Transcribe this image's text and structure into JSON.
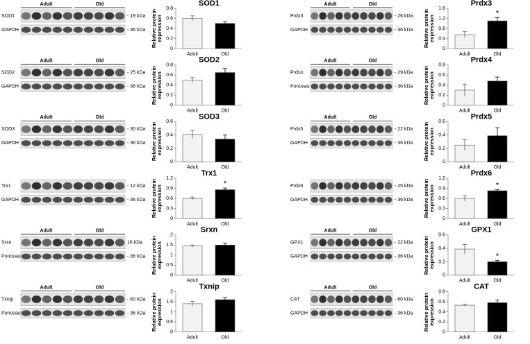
{
  "chart_data": [
    {
      "type": "bar",
      "title": "SOD1",
      "ylabel": "Relative protein expression",
      "categories": [
        "Adult",
        "Old"
      ],
      "values": [
        0.6,
        0.5
      ],
      "errors": [
        0.05,
        0.03
      ],
      "colors": [
        "#f2f2f2",
        "#000000"
      ],
      "significance": [
        null,
        null
      ],
      "ylim": [
        0,
        0.8
      ],
      "yticks": [
        0,
        0.2,
        0.4,
        0.6,
        0.8
      ]
    },
    {
      "type": "bar",
      "title": "SOD2",
      "ylabel": "Relative protein expression",
      "categories": [
        "Adult",
        "Old"
      ],
      "values": [
        0.5,
        0.65
      ],
      "errors": [
        0.05,
        0.08
      ],
      "colors": [
        "#f2f2f2",
        "#000000"
      ],
      "significance": [
        null,
        null
      ],
      "ylim": [
        0,
        0.8
      ],
      "yticks": [
        0,
        0.2,
        0.4,
        0.6,
        0.8
      ]
    },
    {
      "type": "bar",
      "title": "SOD3",
      "ylabel": "Relative protein expression",
      "categories": [
        "Adult",
        "Old"
      ],
      "values": [
        0.41,
        0.34
      ],
      "errors": [
        0.06,
        0.06
      ],
      "colors": [
        "#f2f2f2",
        "#000000"
      ],
      "significance": [
        null,
        null
      ],
      "ylim": [
        0,
        0.6
      ],
      "yticks": [
        0,
        0.2,
        0.4,
        0.6
      ]
    },
    {
      "type": "bar",
      "title": "Trx1",
      "ylabel": "Relative protein expression",
      "categories": [
        "Adult",
        "Old"
      ],
      "values": [
        0.6,
        0.86
      ],
      "errors": [
        0.04,
        0.05
      ],
      "colors": [
        "#f2f2f2",
        "#000000"
      ],
      "significance": [
        null,
        "*"
      ],
      "ylim": [
        0,
        1.2
      ],
      "yticks": [
        0,
        0.3,
        0.6,
        0.9,
        1.2
      ]
    },
    {
      "type": "bar",
      "title": "Srxn",
      "ylabel": "Relative protein expression",
      "categories": [
        "Adult",
        "Old"
      ],
      "values": [
        1.45,
        1.5
      ],
      "errors": [
        0.05,
        0.1
      ],
      "colors": [
        "#f2f2f2",
        "#000000"
      ],
      "significance": [
        null,
        null
      ],
      "ylim": [
        0,
        2
      ],
      "yticks": [
        0,
        0.5,
        1,
        1.5,
        2
      ]
    },
    {
      "type": "bar",
      "title": "Txnip",
      "ylabel": "Relative protein expression",
      "categories": [
        "Adult",
        "Old"
      ],
      "values": [
        1.4,
        1.6
      ],
      "errors": [
        0.12,
        0.1
      ],
      "colors": [
        "#f2f2f2",
        "#000000"
      ],
      "significance": [
        null,
        null
      ],
      "ylim": [
        0,
        2
      ],
      "yticks": [
        0,
        0.5,
        1,
        1.5,
        2
      ]
    },
    {
      "type": "bar",
      "title": "Prdx3",
      "ylabel": "Relative protein expression",
      "categories": [
        "Adult",
        "Old"
      ],
      "values": [
        0.55,
        1.1
      ],
      "errors": [
        0.12,
        0.13
      ],
      "colors": [
        "#f2f2f2",
        "#000000"
      ],
      "significance": [
        null,
        "*"
      ],
      "ylim": [
        0,
        1.6
      ],
      "yticks": [
        0,
        0.4,
        0.8,
        1.2,
        1.6
      ]
    },
    {
      "type": "bar",
      "title": "Prdx4",
      "ylabel": "Relative protein expression",
      "categories": [
        "Adult",
        "Old"
      ],
      "values": [
        0.3,
        0.48
      ],
      "errors": [
        0.12,
        0.08
      ],
      "colors": [
        "#f2f2f2",
        "#000000"
      ],
      "significance": [
        null,
        null
      ],
      "ylim": [
        0,
        0.8
      ],
      "yticks": [
        0,
        0.2,
        0.4,
        0.6,
        0.8
      ]
    },
    {
      "type": "bar",
      "title": "Prdx5",
      "ylabel": "Relative protein expression",
      "categories": [
        "Adult",
        "Old"
      ],
      "values": [
        0.25,
        0.39
      ],
      "errors": [
        0.08,
        0.12
      ],
      "colors": [
        "#f2f2f2",
        "#000000"
      ],
      "significance": [
        null,
        null
      ],
      "ylim": [
        0,
        0.6
      ],
      "yticks": [
        0,
        0.2,
        0.4,
        0.6
      ]
    },
    {
      "type": "bar",
      "title": "Prdx6",
      "ylabel": "Relative protein expression",
      "categories": [
        "Adult",
        "Old"
      ],
      "values": [
        0.6,
        0.83
      ],
      "errors": [
        0.08,
        0.03
      ],
      "colors": [
        "#f2f2f2",
        "#000000"
      ],
      "significance": [
        null,
        "*"
      ],
      "ylim": [
        0,
        1.2
      ],
      "yticks": [
        0,
        0.3,
        0.6,
        0.9,
        1.2
      ]
    },
    {
      "type": "bar",
      "title": "GPX1",
      "ylabel": "Relative protein expression",
      "categories": [
        "Adult",
        "Old"
      ],
      "values": [
        0.39,
        0.2
      ],
      "errors": [
        0.07,
        0.02
      ],
      "colors": [
        "#f2f2f2",
        "#000000"
      ],
      "significance": [
        null,
        "*"
      ],
      "ylim": [
        0,
        0.6
      ],
      "yticks": [
        0,
        0.2,
        0.4,
        0.6
      ]
    },
    {
      "type": "bar",
      "title": "CAT",
      "ylabel": "Relative protein expression",
      "categories": [
        "Adult",
        "Old"
      ],
      "values": [
        0.53,
        0.58
      ],
      "errors": [
        0.02,
        0.05
      ],
      "colors": [
        "#f2f2f2",
        "#000000"
      ],
      "significance": [
        null,
        null
      ],
      "ylim": [
        0,
        0.8
      ],
      "yticks": [
        0,
        0.2,
        0.4,
        0.6,
        0.8
      ]
    }
  ],
  "blots": [
    {
      "groups": [
        "Adult",
        "Old"
      ],
      "rows": [
        {
          "label": "SOD1",
          "size": "- 19 kDa"
        },
        {
          "label": "GAPDH",
          "size": "- 36 kDa"
        }
      ]
    },
    {
      "groups": [
        "Adult",
        "Old"
      ],
      "rows": [
        {
          "label": "SOD2",
          "size": "- 25 kDa"
        },
        {
          "label": "GAPDH",
          "size": "- 36 kDa"
        }
      ]
    },
    {
      "groups": [
        "Adult",
        "Old"
      ],
      "rows": [
        {
          "label": "SOD3",
          "size": "- 30 kDa"
        },
        {
          "label": "GAPDH",
          "size": "- 36 kDa"
        }
      ]
    },
    {
      "rows": [
        {
          "label": "Trx1",
          "size": "- 12 kDa"
        },
        {
          "label": "GAPDH",
          "size": "- 36 kDa"
        }
      ]
    },
    {
      "groups": [
        "Adult",
        "Old"
      ],
      "rows": [
        {
          "label": "Srxn",
          "size": "16 kDa"
        },
        {
          "label": "Ponceau",
          "size": "- 36 kDa"
        }
      ]
    },
    {
      "groups": [
        "Adult",
        "Old"
      ],
      "rows": [
        {
          "label": "Txnip",
          "size": "- 60 kDa"
        },
        {
          "label": "Ponceau",
          "size": "- 36 kDa"
        }
      ]
    },
    {
      "groups": [
        "Adult",
        "Old"
      ],
      "rows": [
        {
          "label": "Prdx3",
          "size": "- 26 kDa"
        },
        {
          "label": "GAPDH",
          "size": "- 36 kDa"
        }
      ]
    },
    {
      "groups": [
        "Adult",
        "Old"
      ],
      "rows": [
        {
          "label": "Prdx4",
          "size": "- 29 kDa"
        },
        {
          "label": "Ponceau",
          "size": "- 36 kDa"
        }
      ]
    },
    {
      "groups": [
        "Adult",
        "Old"
      ],
      "rows": [
        {
          "label": "Prdx5",
          "size": "- 22 kDa"
        },
        {
          "label": "GAPDH",
          "size": "- 36 kDa"
        }
      ]
    },
    {
      "rows": [
        {
          "label": "Prdx6",
          "size": "- 25 kDa"
        },
        {
          "label": "GAPDH",
          "size": "- 36 kDa"
        }
      ]
    },
    {
      "groups": [
        "Adult",
        "Old"
      ],
      "rows": [
        {
          "label": "GPX1",
          "size": "- 22 kDa"
        },
        {
          "label": "GAPDH",
          "size": "- 36 kDa"
        }
      ]
    },
    {
      "groups": [
        "Adult",
        "Old"
      ],
      "rows": [
        {
          "label": "CAT",
          "size": "- 60 kDa"
        },
        {
          "label": "GAPDH",
          "size": "- 36 kDa"
        }
      ]
    }
  ]
}
